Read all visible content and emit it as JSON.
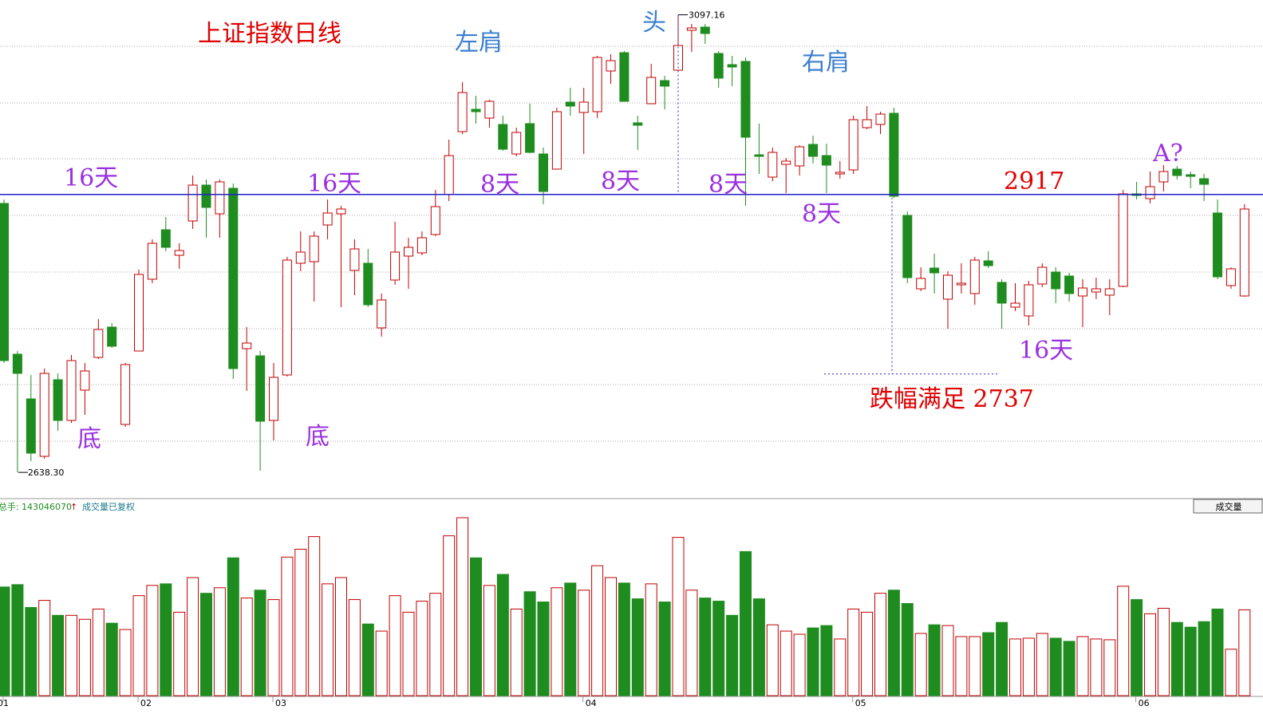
{
  "chart_data": {
    "type": "candlestick",
    "categories": [
      "01",
      null,
      null,
      null,
      null,
      null,
      null,
      null,
      null,
      null,
      "02",
      null,
      null,
      null,
      null,
      null,
      null,
      null,
      null,
      null,
      "03",
      null,
      null,
      null,
      null,
      null,
      null,
      null,
      null,
      null,
      null,
      null,
      null,
      null,
      null,
      null,
      null,
      null,
      null,
      null,
      null,
      null,
      null,
      "04",
      null,
      null,
      null,
      null,
      null,
      null,
      null,
      null,
      null,
      null,
      null,
      null,
      null,
      null,
      null,
      null,
      null,
      null,
      null,
      "05",
      null,
      null,
      null,
      null,
      null,
      null,
      null,
      null,
      null,
      null,
      null,
      null,
      null,
      null,
      null,
      null,
      null,
      null,
      null,
      null,
      "06",
      null,
      null,
      null,
      null,
      null,
      null,
      null,
      null
    ],
    "open": [
      2908,
      2756.8,
      2712,
      2654.4,
      2731.2,
      2690.4,
      2720.8,
      2753.6,
      2784,
      2686.4,
      2760,
      2832,
      2881.6,
      2856,
      2890.4,
      2926.4,
      2897.6,
      2923.2,
      2762.4,
      2755.2,
      2690.4,
      2736,
      2848,
      2849.6,
      2886.4,
      2897.6,
      2840.8,
      2848,
      2783.2,
      2831.2,
      2855.2,
      2858.4,
      2876.8,
      2916.8,
      2980,
      3002.4,
      2993.6,
      2987.2,
      2957.6,
      2988,
      2957.6,
      2942.4,
      3009.6,
      2999.2,
      3000,
      3040.8,
      3059.2,
      2988.8,
      3008,
      3031.2,
      3041.6,
      3081.6,
      3084.8,
      3058.4,
      3047.2,
      3050.4,
      2956.8,
      2934.4,
      2947.2,
      2945.6,
      2967.2,
      2956,
      2937.6,
      2941.6,
      2984,
      2987.2,
      2998.4,
      2896,
      2822.4,
      2843.2,
      2812,
      2826.4,
      2817.6,
      2850.4,
      2828.8,
      2804,
      2795.2,
      2827.2,
      2839.2,
      2835.2,
      2815.2,
      2819.2,
      2816,
      2824.8,
      2917.6,
      2912.8,
      2929.6,
      2942.4,
      2936.8,
      2932.8,
      2898.4,
      2825.6,
      2815.2
    ],
    "high": [
      2912,
      2760,
      2736,
      2742.4,
      2737.6,
      2756,
      2748,
      2792,
      2788,
      2748,
      2841.6,
      2872,
      2894.4,
      2868,
      2936,
      2932,
      2932,
      2928,
      2784,
      2760,
      2748,
      2854.4,
      2880,
      2880,
      2912,
      2905.6,
      2872,
      2862.4,
      2817.6,
      2889.6,
      2873.6,
      2880,
      2921.6,
      2972,
      3029.6,
      3016,
      3012,
      2996,
      2984,
      3008,
      2964,
      3004,
      3024,
      3024,
      3056,
      3057.6,
      3060.8,
      2996,
      3048,
      3036,
      3097.16,
      3088,
      3088,
      3060.8,
      3056,
      3054.4,
      2988,
      2964,
      2953.6,
      2966.4,
      2976,
      2968,
      2950.4,
      2996,
      3005.6,
      3000,
      3004,
      2900,
      2844,
      2857.6,
      2840,
      2848,
      2854.4,
      2860,
      2832,
      2828,
      2830.4,
      2848,
      2844,
      2838.4,
      2832,
      2833.6,
      2832,
      2921.6,
      2929.6,
      2940,
      2946.4,
      2945.6,
      2940,
      2937.6,
      2912,
      2844,
      2907.2
    ],
    "low": [
      2748,
      2638.3,
      2649.6,
      2652,
      2680,
      2688,
      2696,
      2752,
      2763.2,
      2684,
      2760,
      2828,
      2860,
      2842.4,
      2882.4,
      2873.6,
      2873.6,
      2732,
      2720,
      2640,
      2670.4,
      2734.4,
      2840,
      2809.6,
      2872,
      2804,
      2816,
      2804,
      2774.4,
      2826.4,
      2822.4,
      2856,
      2875.2,
      2910.4,
      2977.6,
      2988,
      2984,
      2960.8,
      2955.2,
      2958.4,
      2907.2,
      2942.4,
      2996,
      2957.6,
      2993.6,
      3028,
      3010.4,
      2961.6,
      3008,
      3002.4,
      3041.6,
      3060,
      3068,
      3024,
      3025.6,
      2905.6,
      2937.6,
      2930.4,
      2918.4,
      2936,
      2948,
      2918.4,
      2932.8,
      2937.6,
      2982.4,
      2977.6,
      2913.6,
      2828,
      2820,
      2817.6,
      2782.4,
      2817.6,
      2806.4,
      2843.2,
      2782.4,
      2800,
      2785.6,
      2824,
      2808,
      2809.6,
      2784,
      2812,
      2796,
      2824,
      2912,
      2908,
      2920,
      2932,
      2923.2,
      2910.4,
      2832,
      2822.4,
      2814.4
    ],
    "close": [
      2750.4,
      2737.6,
      2657.6,
      2737.6,
      2690.4,
      2750.4,
      2740,
      2781.6,
      2764.8,
      2746.4,
      2836.8,
      2868,
      2864,
      2860.8,
      2926.4,
      2904,
      2929.6,
      2742.4,
      2768,
      2689.6,
      2733.6,
      2851.2,
      2859.2,
      2875.2,
      2898.4,
      2902.4,
      2862.4,
      2806.4,
      2811.2,
      2859.2,
      2864,
      2873.6,
      2904.8,
      2956,
      3019.2,
      3000,
      3010.4,
      2962.4,
      2979.2,
      2959.2,
      2920,
      3000,
      3005.6,
      3009.6,
      3054.4,
      3051.2,
      3010.4,
      2986.4,
      3034.4,
      3025.6,
      3066.4,
      3084,
      3078.4,
      3033.6,
      3044.8,
      2974.4,
      2955.2,
      2959.2,
      2950.4,
      2964.8,
      2955.2,
      2946.4,
      2939.2,
      2992,
      2992,
      2997.6,
      2915.2,
      2833.6,
      2832.8,
      2838.4,
      2836,
      2828,
      2851.2,
      2845.6,
      2808,
      2808,
      2826.4,
      2844,
      2822.4,
      2817.6,
      2823.2,
      2822.4,
      2822.4,
      2917.6,
      2916,
      2924.8,
      2940,
      2936,
      2935.2,
      2927.2,
      2834.4,
      2842.4,
      2902.4
    ],
    "volume": [
      138,
      141,
      112,
      121,
      102,
      102,
      97,
      110,
      92,
      84,
      127,
      140,
      142,
      106,
      150,
      130,
      137,
      175,
      124,
      134,
      122,
      176,
      186,
      202,
      142,
      150,
      122,
      91,
      82,
      127,
      106,
      120,
      130,
      203,
      226,
      175,
      140,
      154,
      110,
      132,
      119,
      137,
      143,
      134,
      165,
      150,
      143,
      123,
      142,
      119,
      201,
      134,
      124,
      120,
      102,
      183,
      123,
      90,
      82,
      78,
      86,
      89,
      72,
      110,
      106,
      130,
      134,
      117,
      79,
      90,
      89,
      75,
      75,
      80,
      93,
      72,
      73,
      79,
      73,
      69,
      75,
      72,
      71,
      139,
      122,
      104,
      111,
      93,
      87,
      94,
      110,
      59,
      109
    ],
    "ylim": [
      2616,
      3112
    ],
    "volume_lim": [
      0,
      230
    ],
    "grid_lines": [
      3065.6,
      3008.8,
      2952.8,
      2896,
      2839.2,
      2782.4,
      2726.4,
      2669.6
    ],
    "up_color": "#c00000",
    "down_color": "#1e8c1e",
    "level_color": "#2020c8",
    "level": {
      "value": 2917,
      "label": "2917"
    },
    "target": {
      "value": 2737,
      "label": "跌幅满足  2737"
    },
    "high_marker": {
      "value": 3097.16,
      "label": "3097.16"
    },
    "low_marker": {
      "value": 2638.3,
      "label": "2638.30"
    },
    "annotations": [
      {
        "text": "上证指数日线",
        "color": "#e00000"
      },
      {
        "text": "左肩",
        "color": "#3a7fd0"
      },
      {
        "text": "头",
        "color": "#3a7fd0"
      },
      {
        "text": "右肩",
        "color": "#3a7fd0"
      },
      {
        "text": "16天",
        "color": "#9a30e0"
      },
      {
        "text": "16天",
        "color": "#9a30e0"
      },
      {
        "text": "8天",
        "color": "#9a30e0"
      },
      {
        "text": "8天",
        "color": "#9a30e0"
      },
      {
        "text": "8天",
        "color": "#9a30e0"
      },
      {
        "text": "8天",
        "color": "#9a30e0"
      },
      {
        "text": "A?",
        "color": "#9a30e0"
      },
      {
        "text": "16天",
        "color": "#9a30e0"
      },
      {
        "text": "底",
        "color": "#9a30e0"
      },
      {
        "text": "底",
        "color": "#9a30e0"
      }
    ],
    "volume_header": {
      "label": "总手:",
      "total": 143046070,
      "arrow": "↑",
      "note": "成交量已复权",
      "button": "成交量"
    }
  }
}
